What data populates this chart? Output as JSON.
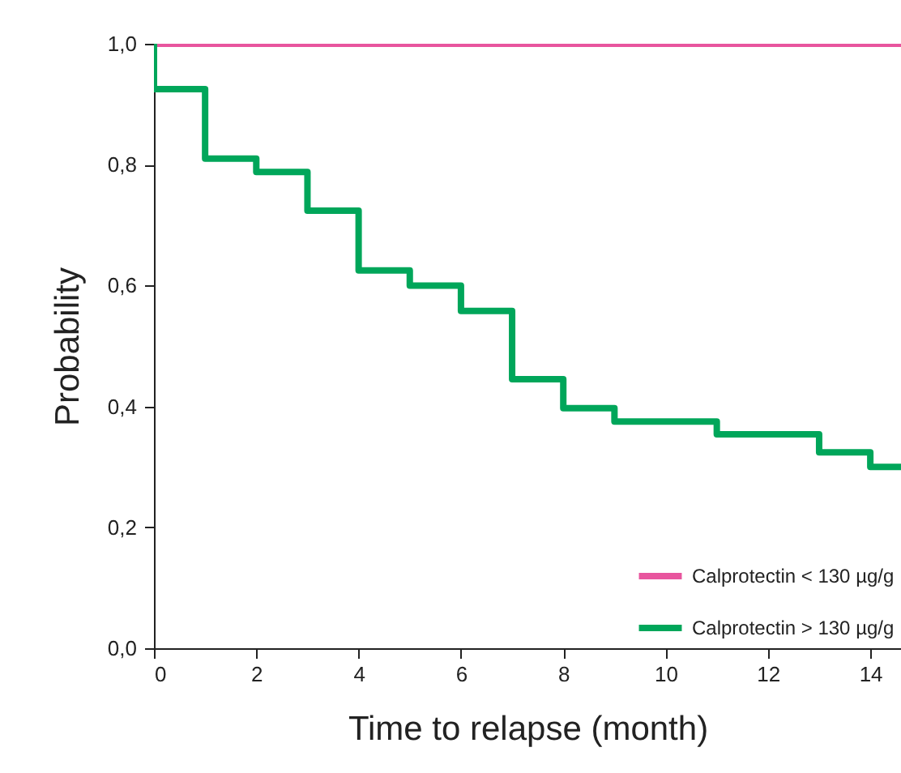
{
  "chart_data": {
    "type": "step",
    "xlabel": "Time to relapse (month)",
    "ylabel": "Probability",
    "xlim": [
      0,
      14.6
    ],
    "xticks": [
      0,
      2,
      4,
      6,
      8,
      10,
      12,
      14
    ],
    "ylim": [
      0,
      1
    ],
    "yticks": [
      {
        "value": 0,
        "label": "0,0"
      },
      {
        "value": 0.2,
        "label": "0,2"
      },
      {
        "value": 0.4,
        "label": "0,4"
      },
      {
        "value": 0.6,
        "label": "0,6"
      },
      {
        "value": 0.8,
        "label": "0,8"
      },
      {
        "value": 1,
        "label": "1,0"
      }
    ],
    "grid": false,
    "legend": "bottom right",
    "marker": "none",
    "line_style": "solid",
    "series": [
      {
        "name": "Calprotectin < 130 µg/g",
        "color": "#e8559e",
        "x": [
          0,
          14.6
        ],
        "values": [
          1,
          1
        ]
      },
      {
        "name": "Calprotectin > 130 µg/g",
        "color": "#00a65a",
        "x": [
          0,
          0,
          1,
          2,
          3,
          4,
          5,
          6,
          7,
          8,
          9,
          11,
          13,
          14,
          14.6
        ],
        "values": [
          1,
          0.925,
          0.81,
          0.788,
          0.724,
          0.625,
          0.6,
          0.558,
          0.445,
          0.397,
          0.375,
          0.354,
          0.324,
          0.3,
          0.3
        ]
      }
    ]
  }
}
